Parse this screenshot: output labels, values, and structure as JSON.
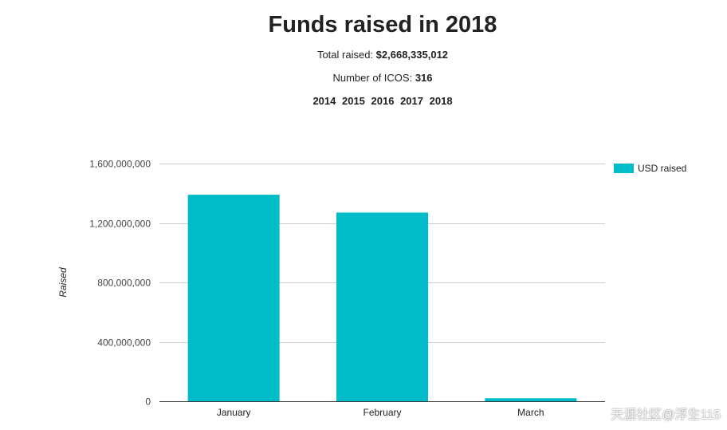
{
  "header": {
    "title": "Funds raised in 2018",
    "total_label": "Total raised:",
    "total_value": "$2,668,335,012",
    "count_label": "Number of ICOS:",
    "count_value": "316"
  },
  "year_tabs": [
    "2014",
    "2015",
    "2016",
    "2017",
    "2018"
  ],
  "watermark": "天涯社区@浮生115",
  "chart_data": {
    "type": "bar",
    "title": "Funds raised in 2018",
    "categories": [
      "January",
      "February",
      "March"
    ],
    "series": [
      {
        "name": "USD raised",
        "values": [
          1390000000,
          1270000000,
          20000000
        ],
        "color": "#00BCC9"
      }
    ],
    "xlabel": "",
    "ylabel": "Raised",
    "ylim": [
      0,
      1600000000
    ],
    "yticks": [
      0,
      400000000,
      800000000,
      1200000000,
      1600000000
    ],
    "ytick_labels": [
      "0",
      "400,000,000",
      "800,000,000",
      "1,200,000,000",
      "1,600,000,000"
    ],
    "grid": true,
    "legend": "top-right"
  }
}
